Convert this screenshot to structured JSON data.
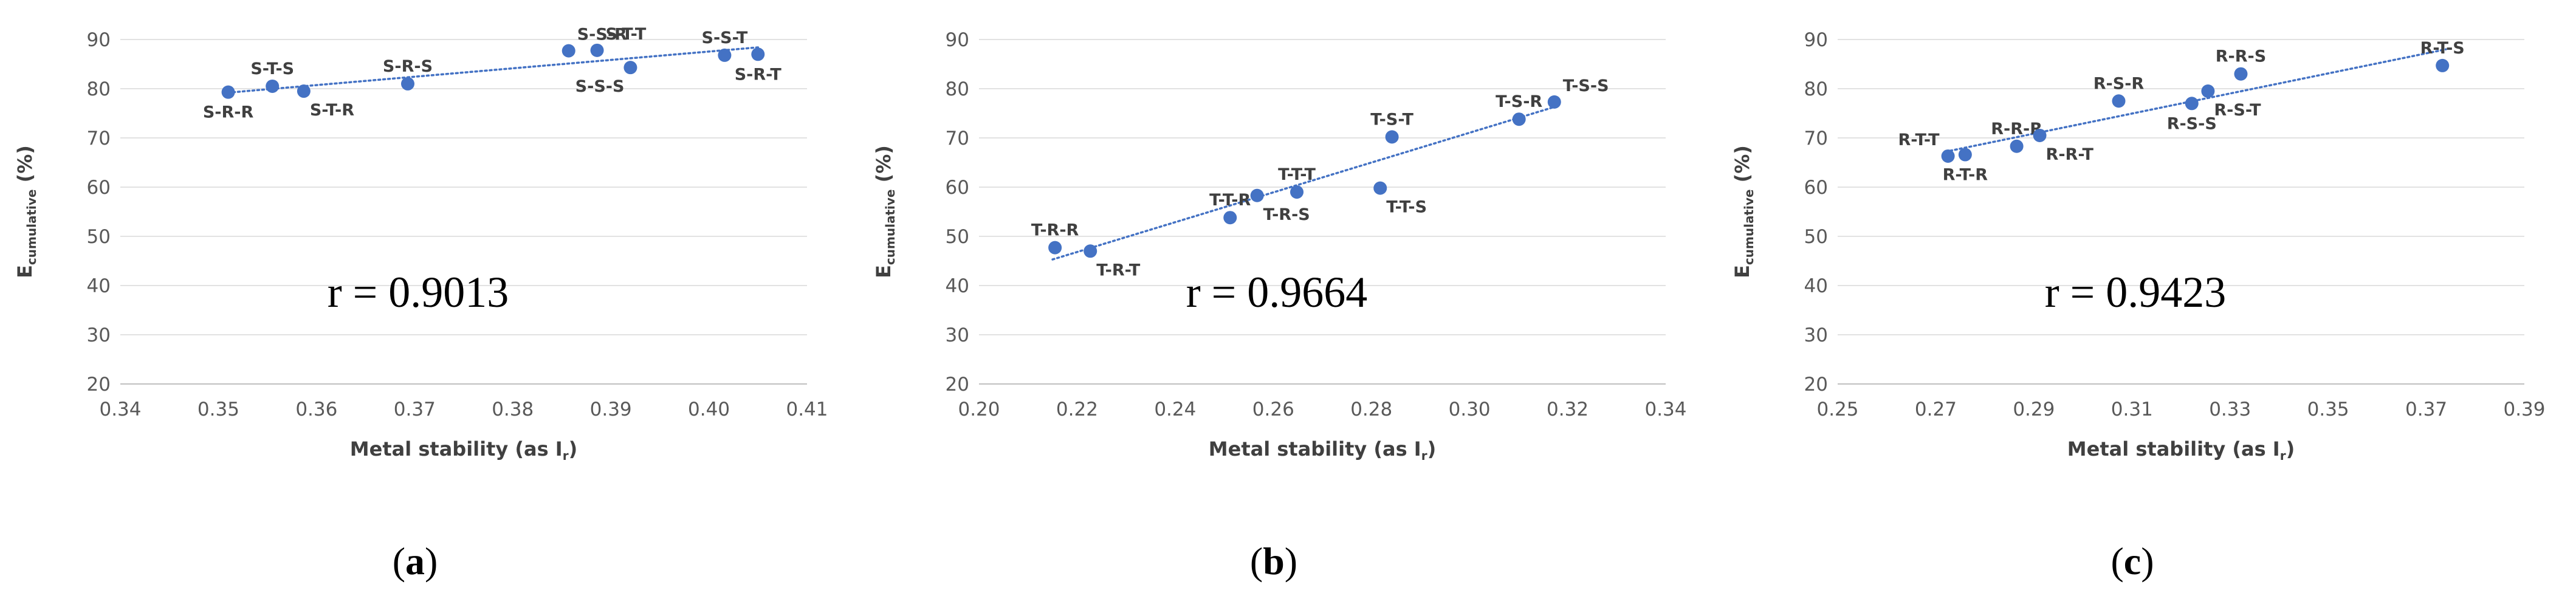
{
  "colors": {
    "marker": "#4472C4",
    "grid": "#d9d9d9",
    "axis": "#bfbfbf"
  },
  "chart_data": [
    {
      "type": "scatter",
      "panel": "a",
      "caption": {
        "open": "(",
        "letter": "a",
        "close": ")"
      },
      "xlabel": "Metal stability (as I",
      "xlabel_sub": "r",
      "xlabel_close": ")",
      "ylabel": "E",
      "ylabel_sub": "cumulative",
      "ylabel_unit": " (%)",
      "xlim": [
        0.34,
        0.41
      ],
      "xticks": [
        0.34,
        0.35,
        0.36,
        0.37,
        0.38,
        0.39,
        0.4,
        0.41
      ],
      "xtick_labels": [
        "0.34",
        "0.35",
        "0.36",
        "0.37",
        "0.38",
        "0.39",
        "0.40",
        "0.41"
      ],
      "ylim": [
        20,
        90
      ],
      "yticks": [
        20,
        30,
        40,
        50,
        60,
        70,
        80,
        90
      ],
      "ytick_labels": [
        "20",
        "30",
        "40",
        "50",
        "60",
        "70",
        "80",
        "90"
      ],
      "trendline": {
        "x": [
          0.351,
          0.405
        ],
        "y": [
          79.2,
          88.4
        ]
      },
      "annotation": "r = 0.9013",
      "points": [
        {
          "label": "S-R-R",
          "x": 0.351,
          "y": 79.3,
          "pos": "below"
        },
        {
          "label": "S-T-S",
          "x": 0.3555,
          "y": 80.5,
          "pos": "above"
        },
        {
          "label": "S-T-R",
          "x": 0.3587,
          "y": 79.5,
          "pos": "below-right"
        },
        {
          "label": "S-R-S",
          "x": 0.3693,
          "y": 81.0,
          "pos": "above"
        },
        {
          "label": "S-S-R",
          "x": 0.3857,
          "y": 87.7,
          "pos": "above-right"
        },
        {
          "label": "S-T-T",
          "x": 0.3886,
          "y": 87.8,
          "pos": "above-right"
        },
        {
          "label": "S-S-S",
          "x": 0.392,
          "y": 84.3,
          "pos": "below-left"
        },
        {
          "label": "S-S-T",
          "x": 0.4016,
          "y": 86.8,
          "pos": "above"
        },
        {
          "label": "S-R-T",
          "x": 0.405,
          "y": 87.0,
          "pos": "below"
        }
      ]
    },
    {
      "type": "scatter",
      "panel": "b",
      "caption": {
        "open": "(",
        "letter": "b",
        "close": ")"
      },
      "xlabel": "Metal stability (as I",
      "xlabel_sub": "r",
      "xlabel_close": ")",
      "ylabel": "E",
      "ylabel_sub": "cumulative",
      "ylabel_unit": " (%)",
      "xlim": [
        0.2,
        0.34
      ],
      "xticks": [
        0.2,
        0.22,
        0.24,
        0.26,
        0.28,
        0.3,
        0.32,
        0.34
      ],
      "xtick_labels": [
        "0.20",
        "0.22",
        "0.24",
        "0.26",
        "0.28",
        "0.30",
        "0.32",
        "0.34"
      ],
      "ylim": [
        20,
        90
      ],
      "yticks": [
        20,
        30,
        40,
        50,
        60,
        70,
        80,
        90
      ],
      "ytick_labels": [
        "20",
        "30",
        "40",
        "50",
        "60",
        "70",
        "80",
        "90"
      ],
      "trendline": {
        "x": [
          0.215,
          0.318
        ],
        "y": [
          45.3,
          76.5
        ]
      },
      "annotation": "r = 0.9664",
      "points": [
        {
          "label": "T-R-R",
          "x": 0.2155,
          "y": 47.7,
          "pos": "above"
        },
        {
          "label": "T-R-T",
          "x": 0.2227,
          "y": 47.0,
          "pos": "below-right"
        },
        {
          "label": "T-T-R",
          "x": 0.2512,
          "y": 53.8,
          "pos": "above"
        },
        {
          "label": "T-R-S",
          "x": 0.2567,
          "y": 58.3,
          "pos": "below-right"
        },
        {
          "label": "T-T-T",
          "x": 0.2648,
          "y": 59.0,
          "pos": "above"
        },
        {
          "label": "T-T-S",
          "x": 0.2818,
          "y": 59.8,
          "pos": "below-right"
        },
        {
          "label": "T-S-T",
          "x": 0.2842,
          "y": 70.2,
          "pos": "above"
        },
        {
          "label": "T-S-R",
          "x": 0.3101,
          "y": 73.8,
          "pos": "above"
        },
        {
          "label": "T-S-S",
          "x": 0.3173,
          "y": 77.3,
          "pos": "above-right"
        }
      ]
    },
    {
      "type": "scatter",
      "panel": "c",
      "caption": {
        "open": "(",
        "letter": "c",
        "close": ")"
      },
      "xlabel": "Metal stability (as I",
      "xlabel_sub": "r",
      "xlabel_close": ")",
      "ylabel": "E",
      "ylabel_sub": "cumulative",
      "ylabel_unit": " (%)",
      "xlim": [
        0.25,
        0.39
      ],
      "xticks": [
        0.25,
        0.27,
        0.29,
        0.31,
        0.33,
        0.35,
        0.37,
        0.39
      ],
      "xtick_labels": [
        "0.25",
        "0.27",
        "0.29",
        "0.31",
        "0.33",
        "0.35",
        "0.37",
        "0.39"
      ],
      "ylim": [
        20,
        90
      ],
      "yticks": [
        20,
        30,
        40,
        50,
        60,
        70,
        80,
        90
      ],
      "ytick_labels": [
        "20",
        "30",
        "40",
        "50",
        "60",
        "70",
        "80",
        "90"
      ],
      "trendline": {
        "x": [
          0.272,
          0.374
        ],
        "y": [
          67.2,
          88.0
        ]
      },
      "annotation": "r = 0.9423",
      "points": [
        {
          "label": "R-T-T",
          "x": 0.2725,
          "y": 66.3,
          "pos": "above-left"
        },
        {
          "label": "R-T-R",
          "x": 0.276,
          "y": 66.6,
          "pos": "below"
        },
        {
          "label": "R-R-R",
          "x": 0.2865,
          "y": 68.3,
          "pos": "above"
        },
        {
          "label": "R-R-T",
          "x": 0.2912,
          "y": 70.5,
          "pos": "below-right"
        },
        {
          "label": "R-S-R",
          "x": 0.3073,
          "y": 77.5,
          "pos": "above"
        },
        {
          "label": "R-S-S",
          "x": 0.3222,
          "y": 77.0,
          "pos": "below"
        },
        {
          "label": "R-S-T",
          "x": 0.3255,
          "y": 79.5,
          "pos": "below-right"
        },
        {
          "label": "R-R-S",
          "x": 0.3322,
          "y": 83.0,
          "pos": "above"
        },
        {
          "label": "R-T-S",
          "x": 0.3733,
          "y": 84.7,
          "pos": "above"
        }
      ]
    }
  ]
}
